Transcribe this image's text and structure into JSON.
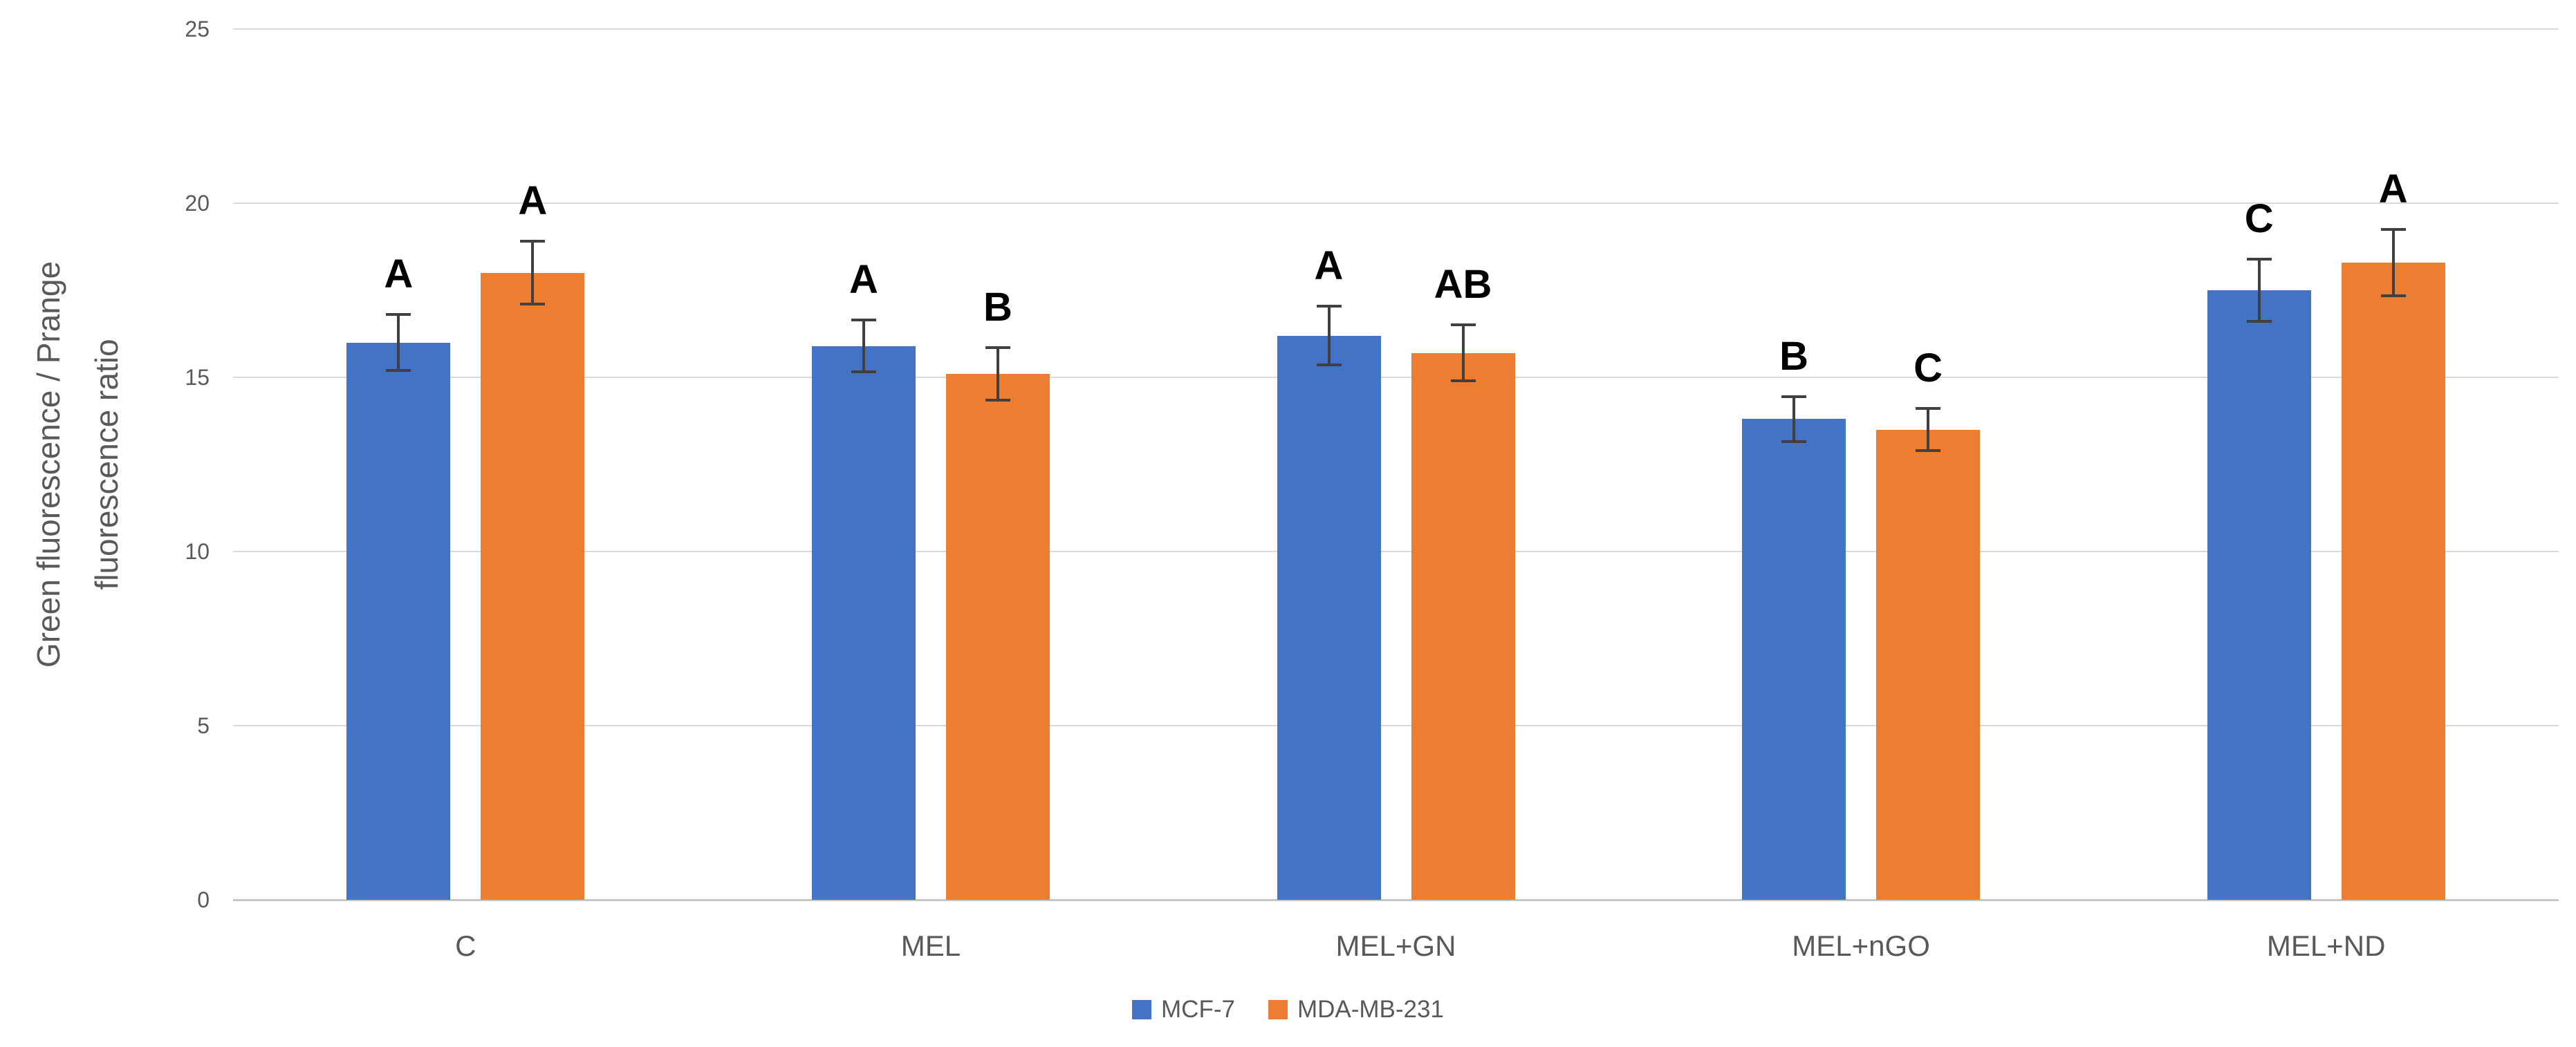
{
  "y_axis": {
    "title_line1": "Green fluorescence / Prange",
    "title_line2": "fluorescence ratio",
    "ticks": [
      0,
      5,
      10,
      15,
      20,
      25
    ]
  },
  "chart_data": {
    "type": "bar",
    "title": "",
    "xlabel": "",
    "ylabel": "Green fluorescence / Prange fluorescence ratio",
    "categories": [
      "C",
      "MEL",
      "MEL+GN",
      "MEL+nGO",
      "MEL+ND"
    ],
    "series": [
      {
        "name": "MCF-7",
        "color": "#4472c4",
        "values": [
          16.0,
          15.9,
          16.2,
          13.8,
          17.5
        ],
        "errors": [
          0.8,
          0.75,
          0.85,
          0.65,
          0.9
        ],
        "letters": [
          "A",
          "A",
          "A",
          "B",
          "C"
        ]
      },
      {
        "name": "MDA-MB-231",
        "color": "#ed7d31",
        "values": [
          18.0,
          15.1,
          15.7,
          13.5,
          18.3
        ],
        "errors": [
          0.9,
          0.75,
          0.8,
          0.6,
          0.95
        ],
        "letters": [
          "A",
          "B",
          "AB",
          "C",
          "A"
        ]
      }
    ],
    "ylim": [
      0,
      25
    ],
    "grid": true,
    "legend_position": "bottom"
  },
  "legend": {
    "items": [
      {
        "label": "MCF-7",
        "color": "#4472c4"
      },
      {
        "label": "MDA-MB-231",
        "color": "#ed7d31"
      }
    ]
  },
  "colors": {
    "series_blue": "#4472c4",
    "series_orange": "#ed7d31",
    "gridline": "#d9d9d9",
    "axis_line": "#c6c6c6",
    "tick_text": "#595959",
    "category_text": "#595959",
    "axis_title_text": "#595959",
    "legend_text": "#595959",
    "error_bar": "#404040",
    "letter_text": "#000000",
    "background": "#ffffff"
  }
}
